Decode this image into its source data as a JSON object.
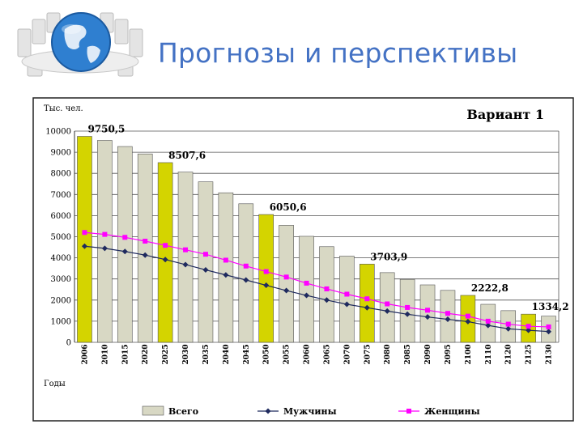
{
  "slide": {
    "title": "Прогнозы и перспективы"
  },
  "colors": {
    "title": "#4472c4",
    "bar_total": "#d8d8c4",
    "bar_highlight": "#d4d400",
    "men": "#1f2a5e",
    "women": "#ff00ff"
  },
  "chart_data": {
    "type": "bar",
    "title": "Вариант 1",
    "ylabel": "Тыс. чел.",
    "xlabel": "Годы",
    "ylim": [
      0,
      10000
    ],
    "yticks": [
      0,
      1000,
      2000,
      3000,
      4000,
      5000,
      6000,
      7000,
      8000,
      9000,
      10000
    ],
    "grid": true,
    "legend_position": "bottom",
    "categories": [
      "2006",
      "2010",
      "2015",
      "2020",
      "2025",
      "2030",
      "2035",
      "2040",
      "2045",
      "2050",
      "2055",
      "2060",
      "2065",
      "2070",
      "2075",
      "2080",
      "2085",
      "2090",
      "2095",
      "2100",
      "2110",
      "2120",
      "2125",
      "2130"
    ],
    "highlighted": [
      "2006",
      "2025",
      "2050",
      "2075",
      "2100",
      "2125"
    ],
    "series": [
      {
        "name": "Всего",
        "type": "bar",
        "values": [
          9750.5,
          9560,
          9270,
          8920,
          8507.6,
          8060,
          7600,
          7080,
          6560,
          6050.6,
          5540,
          5020,
          4530,
          4080,
          3703.9,
          3300,
          2980,
          2720,
          2460,
          2222.8,
          1800,
          1500,
          1334.2,
          1240
        ]
      },
      {
        "name": "Мужчины",
        "type": "line",
        "values": [
          4550,
          4450,
          4300,
          4130,
          3920,
          3680,
          3430,
          3190,
          2950,
          2700,
          2450,
          2220,
          2000,
          1800,
          1640,
          1480,
          1330,
          1200,
          1090,
          980,
          800,
          640,
          570,
          510
        ]
      },
      {
        "name": "Женщины",
        "type": "line",
        "values": [
          5200,
          5110,
          4970,
          4790,
          4590,
          4380,
          4170,
          3890,
          3610,
          3350,
          3090,
          2800,
          2530,
          2280,
          2060,
          1820,
          1650,
          1520,
          1370,
          1240,
          1000,
          860,
          760,
          730
        ]
      }
    ],
    "data_labels": [
      {
        "category": "2006",
        "text": "9750,5"
      },
      {
        "category": "2025",
        "text": "8507,6"
      },
      {
        "category": "2050",
        "text": "6050,6"
      },
      {
        "category": "2075",
        "text": "3703,9"
      },
      {
        "category": "2100",
        "text": "2222,8"
      },
      {
        "category": "2125",
        "text": "1334,2"
      }
    ]
  }
}
